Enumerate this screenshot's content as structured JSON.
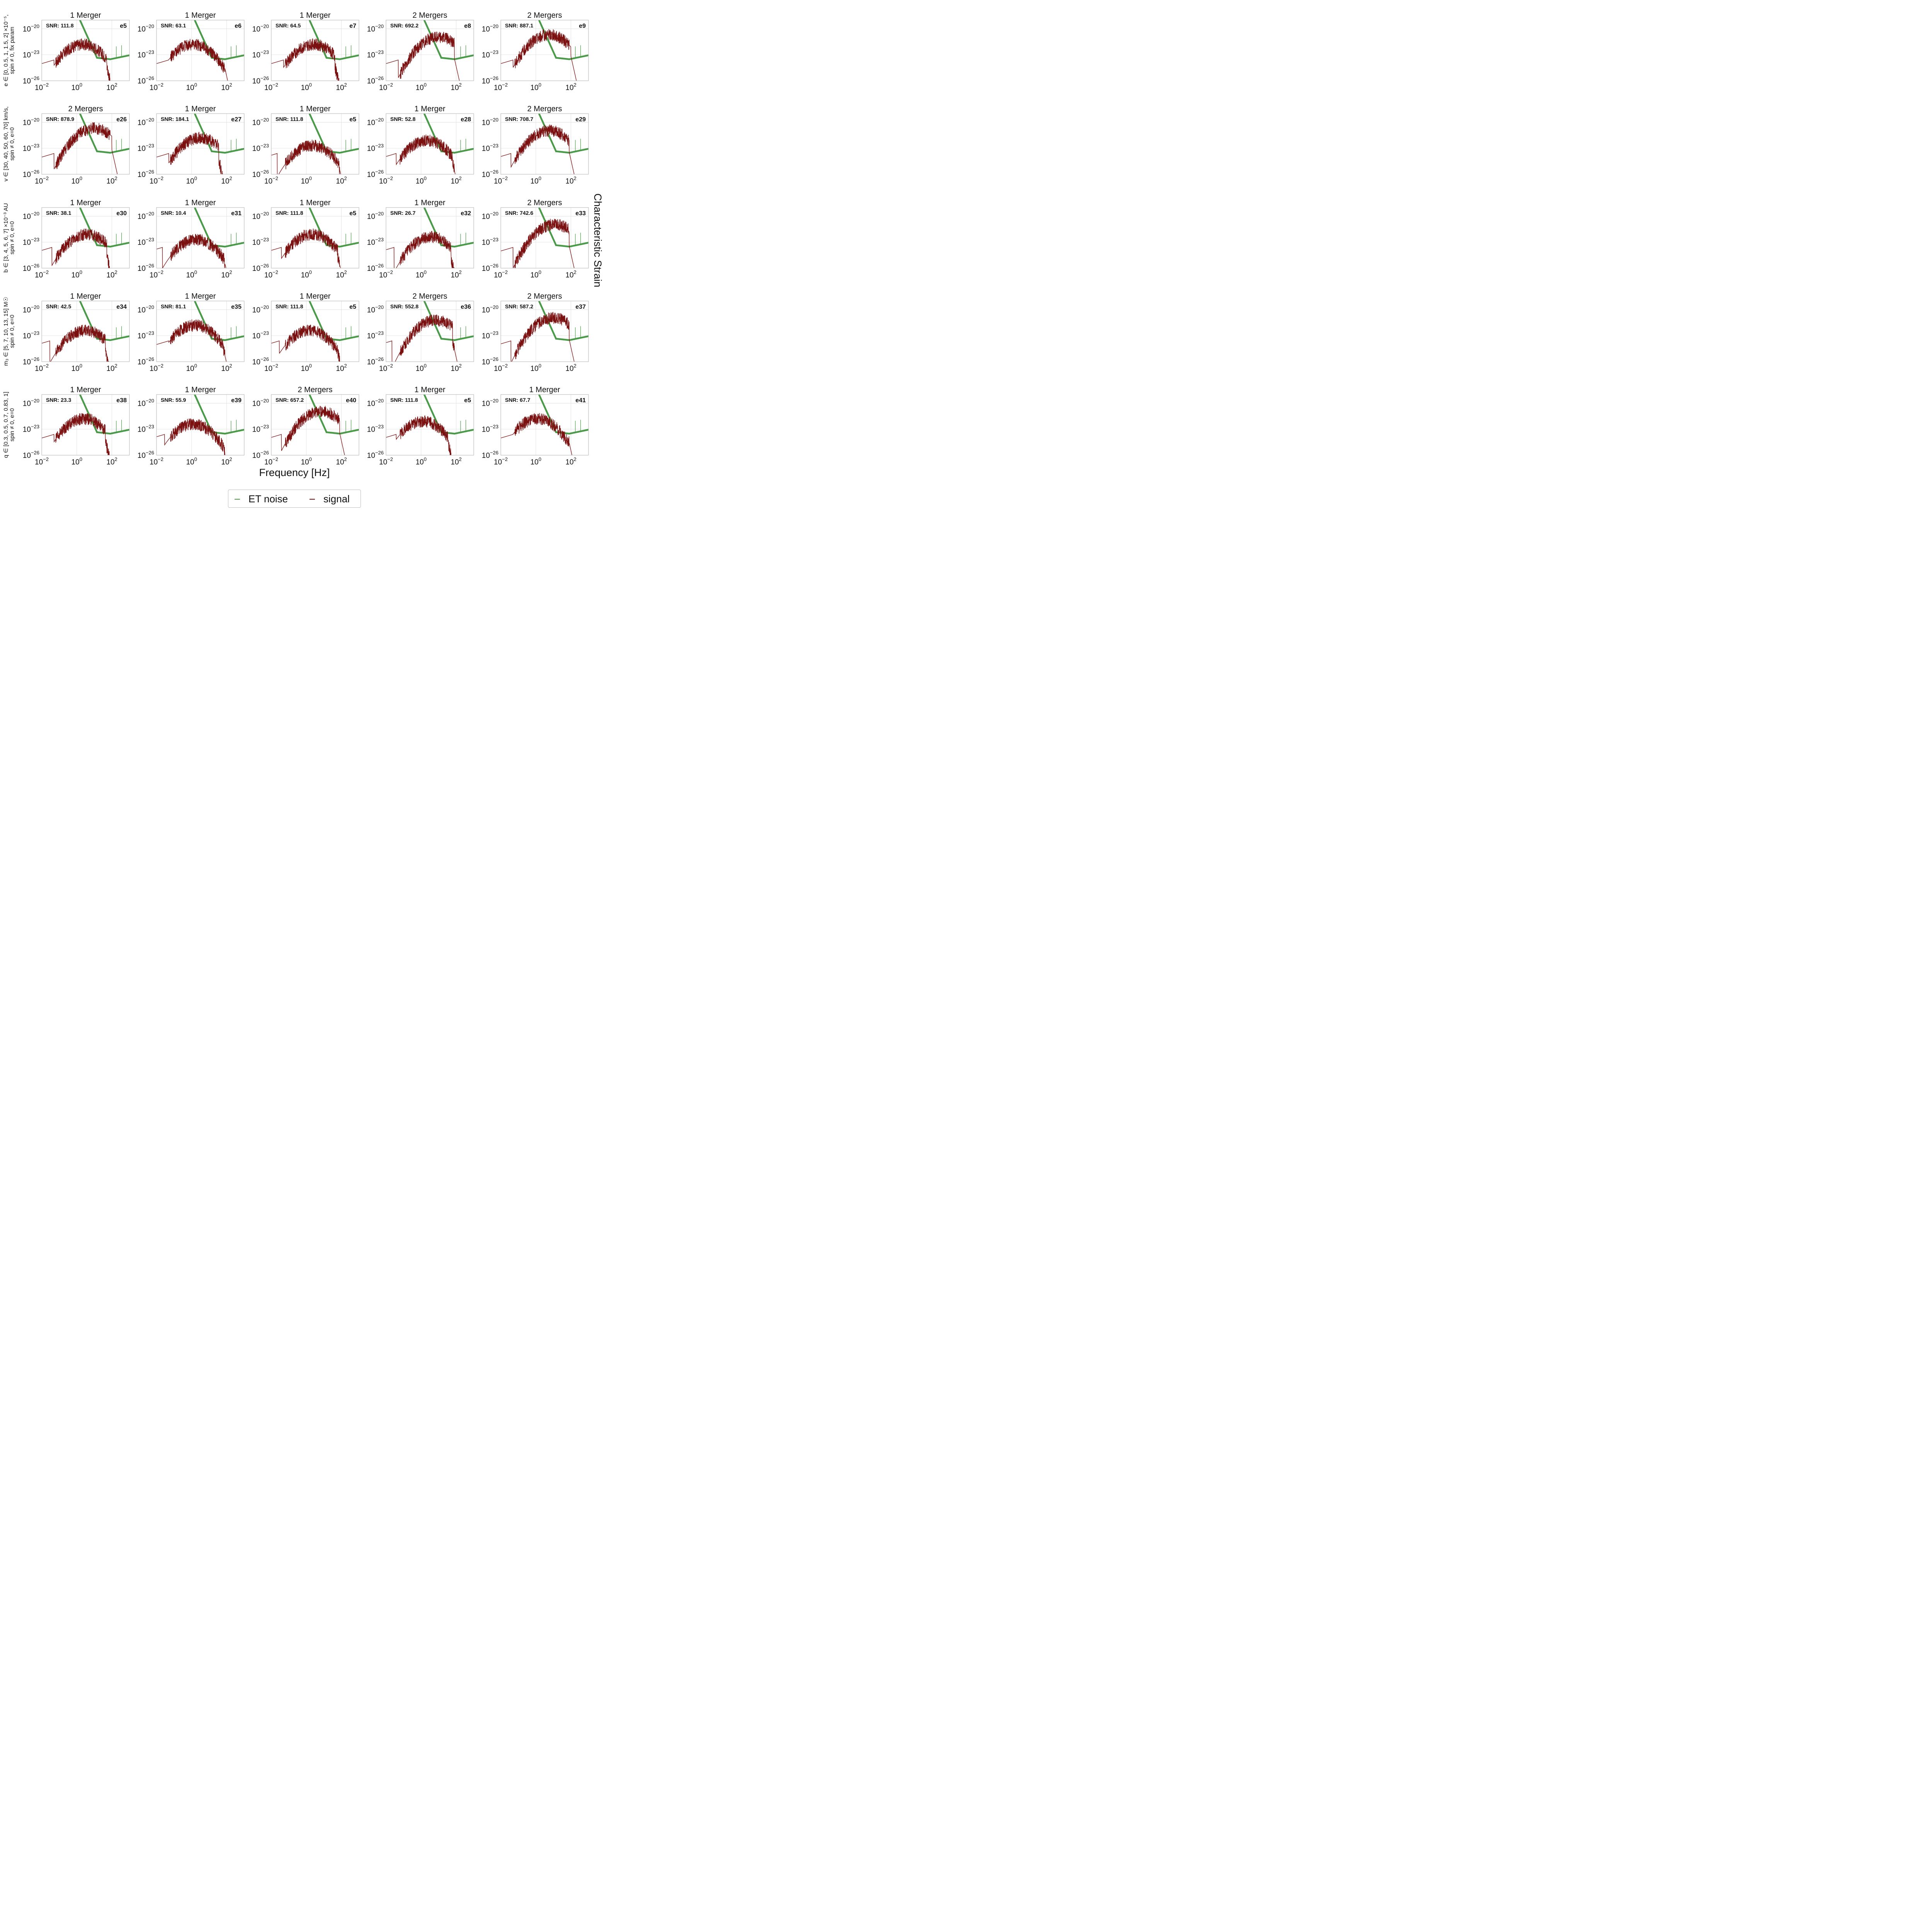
{
  "figure": {
    "xlabel": "Frequency [Hz]",
    "ylabel": "Characteristic Strain",
    "legend": {
      "items": [
        {
          "label": "ET noise",
          "color": "#4a9a4a"
        },
        {
          "label": "signal",
          "color": "#7a1010"
        }
      ],
      "placement": "bottom-center"
    },
    "colors": {
      "noise": "#4a9a4a",
      "signal": "#7a1010",
      "grid": "#dcdcdc",
      "frame": "#b0b0b0"
    },
    "xticks": [
      "10^-2",
      "10^0",
      "10^2"
    ],
    "yticks": [
      "10^-20",
      "10^-23",
      "10^-26"
    ]
  },
  "rows": [
    {
      "label_lines": [
        "e ∈ [0, 0.5, 1, 1.5, 2] ×10⁻⁵,",
        "spin ≠ 0, fix param"
      ]
    },
    {
      "label_lines": [
        "v ∈ [30, 40, 50, 60, 70] km/s,",
        "spin ≠ 0, e=0"
      ]
    },
    {
      "label_lines": [
        "b ∈ [3, 4, 5, 6, 7] ×10⁻³ AU",
        "spin ≠ 0, e=0"
      ]
    },
    {
      "label_lines": [
        "m₃ ∈ [5, 7, 10, 13, 15] M☉",
        "spin ≠ 0, e=0"
      ]
    },
    {
      "label_lines": [
        "q ∈ [0.3, 0.5, 0.7, 0.83, 1]",
        "spin ≠ 0, e=0"
      ]
    }
  ],
  "chart_data": [
    {
      "type": "line",
      "title": "1 Merger",
      "id": "e5",
      "snr": "SNR: 111.8",
      "xscale": "log",
      "yscale": "log",
      "xlim": [
        0.01,
        1000
      ],
      "ylim": [
        1e-26,
        1e-19
      ],
      "series": [
        {
          "name": "ET noise"
        },
        {
          "name": "signal"
        }
      ]
    },
    {
      "type": "line",
      "title": "1 Merger",
      "id": "e6",
      "snr": "SNR: 63.1",
      "xscale": "log",
      "yscale": "log",
      "xlim": [
        0.01,
        1000
      ],
      "ylim": [
        1e-26,
        1e-19
      ],
      "series": [
        {
          "name": "ET noise"
        },
        {
          "name": "signal"
        }
      ]
    },
    {
      "type": "line",
      "title": "1 Merger",
      "id": "e7",
      "snr": "SNR: 64.5",
      "xscale": "log",
      "yscale": "log",
      "xlim": [
        0.01,
        1000
      ],
      "ylim": [
        1e-26,
        1e-19
      ],
      "series": [
        {
          "name": "ET noise"
        },
        {
          "name": "signal"
        }
      ]
    },
    {
      "type": "line",
      "title": "2 Mergers",
      "id": "e8",
      "snr": "SNR: 692.2",
      "xscale": "log",
      "yscale": "log",
      "xlim": [
        0.01,
        1000
      ],
      "ylim": [
        1e-26,
        1e-19
      ],
      "series": [
        {
          "name": "ET noise"
        },
        {
          "name": "signal"
        }
      ]
    },
    {
      "type": "line",
      "title": "2 Mergers",
      "id": "e9",
      "snr": "SNR: 887.1",
      "xscale": "log",
      "yscale": "log",
      "xlim": [
        0.01,
        1000
      ],
      "ylim": [
        1e-26,
        1e-19
      ],
      "series": [
        {
          "name": "ET noise"
        },
        {
          "name": "signal"
        }
      ]
    },
    {
      "type": "line",
      "title": "2 Mergers",
      "id": "e26",
      "snr": "SNR: 878.9",
      "xscale": "log",
      "yscale": "log",
      "xlim": [
        0.01,
        1000
      ],
      "ylim": [
        1e-26,
        1e-19
      ],
      "series": [
        {
          "name": "ET noise"
        },
        {
          "name": "signal"
        }
      ]
    },
    {
      "type": "line",
      "title": "1 Merger",
      "id": "e27",
      "snr": "SNR: 184.1",
      "xscale": "log",
      "yscale": "log",
      "xlim": [
        0.01,
        1000
      ],
      "ylim": [
        1e-26,
        1e-19
      ],
      "series": [
        {
          "name": "ET noise"
        },
        {
          "name": "signal"
        }
      ]
    },
    {
      "type": "line",
      "title": "1 Merger",
      "id": "e5",
      "snr": "SNR: 111.8",
      "xscale": "log",
      "yscale": "log",
      "xlim": [
        0.01,
        1000
      ],
      "ylim": [
        1e-26,
        1e-19
      ],
      "series": [
        {
          "name": "ET noise"
        },
        {
          "name": "signal"
        }
      ]
    },
    {
      "type": "line",
      "title": "1 Merger",
      "id": "e28",
      "snr": "SNR: 52.8",
      "xscale": "log",
      "yscale": "log",
      "xlim": [
        0.01,
        1000
      ],
      "ylim": [
        1e-26,
        1e-19
      ],
      "series": [
        {
          "name": "ET noise"
        },
        {
          "name": "signal"
        }
      ]
    },
    {
      "type": "line",
      "title": "2 Mergers",
      "id": "e29",
      "snr": "SNR: 708.7",
      "xscale": "log",
      "yscale": "log",
      "xlim": [
        0.01,
        1000
      ],
      "ylim": [
        1e-26,
        1e-19
      ],
      "series": [
        {
          "name": "ET noise"
        },
        {
          "name": "signal"
        }
      ]
    },
    {
      "type": "line",
      "title": "1 Merger",
      "id": "e30",
      "snr": "SNR: 38.1",
      "xscale": "log",
      "yscale": "log",
      "xlim": [
        0.01,
        1000
      ],
      "ylim": [
        1e-26,
        1e-19
      ],
      "series": [
        {
          "name": "ET noise"
        },
        {
          "name": "signal"
        }
      ]
    },
    {
      "type": "line",
      "title": "1 Merger",
      "id": "e31",
      "snr": "SNR: 10.4",
      "xscale": "log",
      "yscale": "log",
      "xlim": [
        0.01,
        1000
      ],
      "ylim": [
        1e-26,
        1e-19
      ],
      "series": [
        {
          "name": "ET noise"
        },
        {
          "name": "signal"
        }
      ]
    },
    {
      "type": "line",
      "title": "1 Merger",
      "id": "e5",
      "snr": "SNR: 111.8",
      "xscale": "log",
      "yscale": "log",
      "xlim": [
        0.01,
        1000
      ],
      "ylim": [
        1e-26,
        1e-19
      ],
      "series": [
        {
          "name": "ET noise"
        },
        {
          "name": "signal"
        }
      ]
    },
    {
      "type": "line",
      "title": "1 Merger",
      "id": "e32",
      "snr": "SNR: 26.7",
      "xscale": "log",
      "yscale": "log",
      "xlim": [
        0.01,
        1000
      ],
      "ylim": [
        1e-26,
        1e-19
      ],
      "series": [
        {
          "name": "ET noise"
        },
        {
          "name": "signal"
        }
      ]
    },
    {
      "type": "line",
      "title": "2 Mergers",
      "id": "e33",
      "snr": "SNR: 742.6",
      "xscale": "log",
      "yscale": "log",
      "xlim": [
        0.01,
        1000
      ],
      "ylim": [
        1e-26,
        1e-19
      ],
      "series": [
        {
          "name": "ET noise"
        },
        {
          "name": "signal"
        }
      ]
    },
    {
      "type": "line",
      "title": "1 Merger",
      "id": "e34",
      "snr": "SNR: 42.5",
      "xscale": "log",
      "yscale": "log",
      "xlim": [
        0.01,
        1000
      ],
      "ylim": [
        1e-26,
        1e-19
      ],
      "series": [
        {
          "name": "ET noise"
        },
        {
          "name": "signal"
        }
      ]
    },
    {
      "type": "line",
      "title": "1 Merger",
      "id": "e35",
      "snr": "SNR: 81.1",
      "xscale": "log",
      "yscale": "log",
      "xlim": [
        0.01,
        1000
      ],
      "ylim": [
        1e-26,
        1e-19
      ],
      "series": [
        {
          "name": "ET noise"
        },
        {
          "name": "signal"
        }
      ]
    },
    {
      "type": "line",
      "title": "1 Merger",
      "id": "e5",
      "snr": "SNR: 111.8",
      "xscale": "log",
      "yscale": "log",
      "xlim": [
        0.01,
        1000
      ],
      "ylim": [
        1e-26,
        1e-19
      ],
      "series": [
        {
          "name": "ET noise"
        },
        {
          "name": "signal"
        }
      ]
    },
    {
      "type": "line",
      "title": "2 Mergers",
      "id": "e36",
      "snr": "SNR: 552.8",
      "xscale": "log",
      "yscale": "log",
      "xlim": [
        0.01,
        1000
      ],
      "ylim": [
        1e-26,
        1e-19
      ],
      "series": [
        {
          "name": "ET noise"
        },
        {
          "name": "signal"
        }
      ]
    },
    {
      "type": "line",
      "title": "2 Mergers",
      "id": "e37",
      "snr": "SNR: 587.2",
      "xscale": "log",
      "yscale": "log",
      "xlim": [
        0.01,
        1000
      ],
      "ylim": [
        1e-26,
        1e-19
      ],
      "series": [
        {
          "name": "ET noise"
        },
        {
          "name": "signal"
        }
      ]
    },
    {
      "type": "line",
      "title": "1 Merger",
      "id": "e38",
      "snr": "SNR: 23.3",
      "xscale": "log",
      "yscale": "log",
      "xlim": [
        0.01,
        1000
      ],
      "ylim": [
        1e-26,
        1e-19
      ],
      "series": [
        {
          "name": "ET noise"
        },
        {
          "name": "signal"
        }
      ]
    },
    {
      "type": "line",
      "title": "1 Merger",
      "id": "e39",
      "snr": "SNR: 55.9",
      "xscale": "log",
      "yscale": "log",
      "xlim": [
        0.01,
        1000
      ],
      "ylim": [
        1e-26,
        1e-19
      ],
      "series": [
        {
          "name": "ET noise"
        },
        {
          "name": "signal"
        }
      ]
    },
    {
      "type": "line",
      "title": "2 Mergers",
      "id": "e40",
      "snr": "SNR: 657.2",
      "xscale": "log",
      "yscale": "log",
      "xlim": [
        0.01,
        1000
      ],
      "ylim": [
        1e-26,
        1e-19
      ],
      "series": [
        {
          "name": "ET noise"
        },
        {
          "name": "signal"
        }
      ]
    },
    {
      "type": "line",
      "title": "1 Merger",
      "id": "e5",
      "snr": "SNR: 111.8",
      "xscale": "log",
      "yscale": "log",
      "xlim": [
        0.01,
        1000
      ],
      "ylim": [
        1e-26,
        1e-19
      ],
      "series": [
        {
          "name": "ET noise"
        },
        {
          "name": "signal"
        }
      ]
    },
    {
      "type": "line",
      "title": "1 Merger",
      "id": "e41",
      "snr": "SNR: 67.7",
      "xscale": "log",
      "yscale": "log",
      "xlim": [
        0.01,
        1000
      ],
      "ylim": [
        1e-26,
        1e-19
      ],
      "series": [
        {
          "name": "ET noise"
        },
        {
          "name": "signal"
        }
      ]
    }
  ]
}
